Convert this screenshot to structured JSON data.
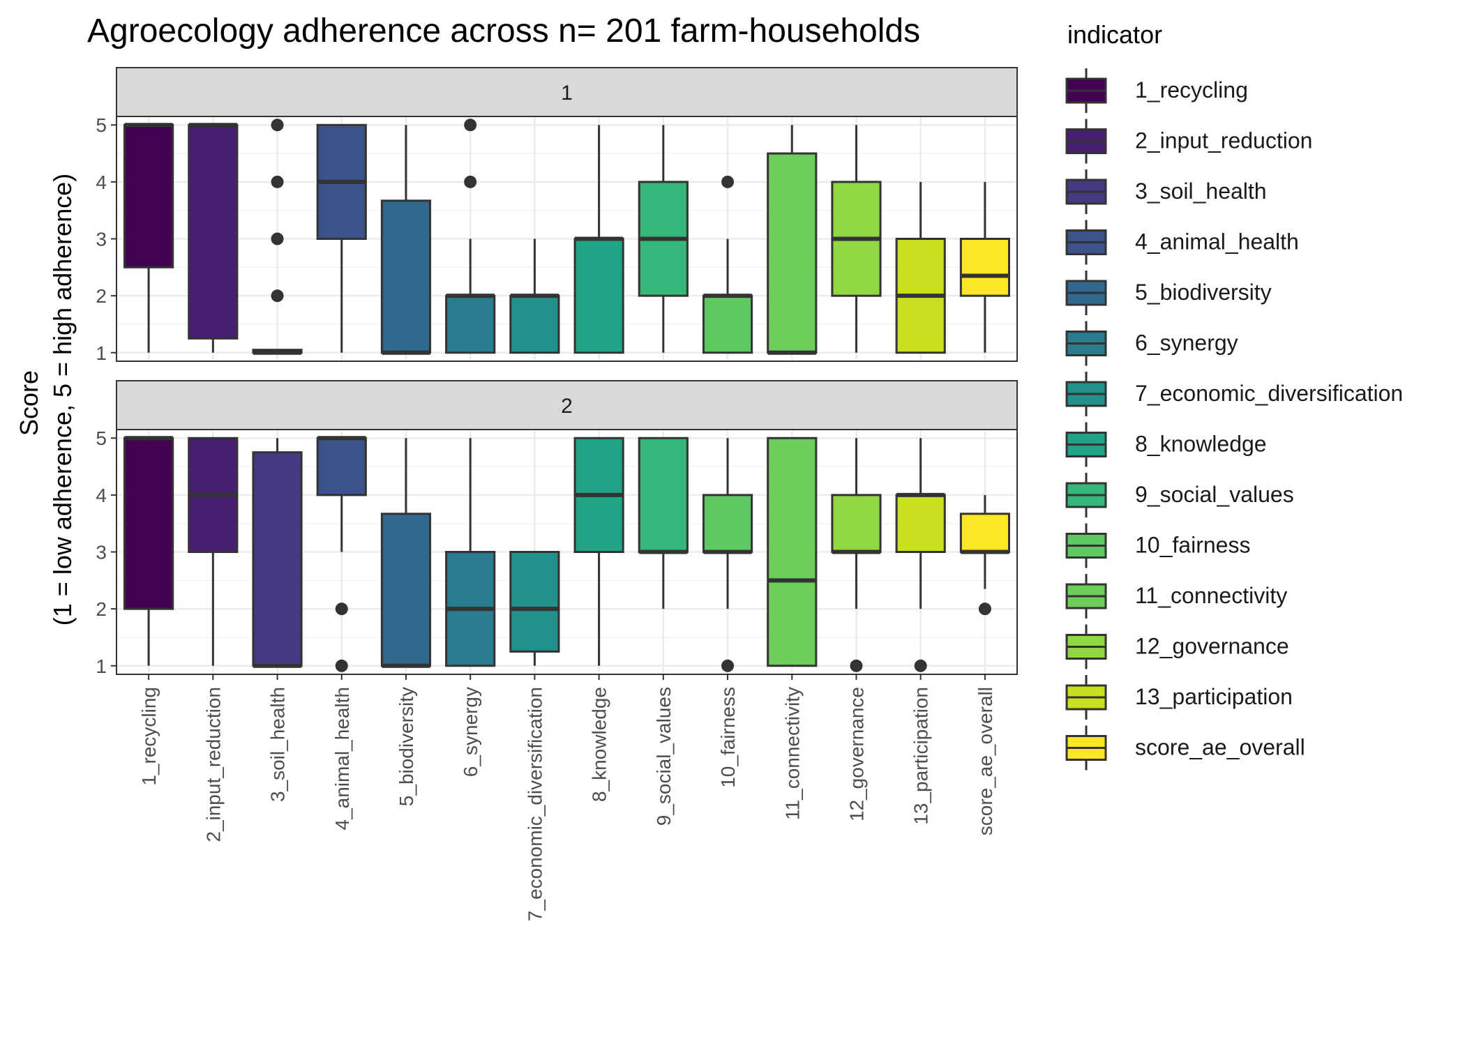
{
  "chart_data": {
    "type": "boxplot",
    "title": "Agroecology adherence across n= 201 farm-households",
    "ylabel_line1": "Score",
    "ylabel_line2": "(1 = low adherence, 5 = high adherence)",
    "xlabel": "",
    "ylim": [
      0.85,
      5.15
    ],
    "yticks": [
      1,
      2,
      3,
      4,
      5
    ],
    "legend": {
      "title": "indicator",
      "placement": "right"
    },
    "categories": [
      "1_recycling",
      "2_input_reduction",
      "3_soil_health",
      "4_animal_health",
      "5_biodiversity",
      "6_synergy",
      "7_economic_diversification",
      "8_knowledge",
      "9_social_values",
      "10_fairness",
      "11_connectivity",
      "12_governance",
      "13_participation",
      "score_ae_overall"
    ],
    "colors": [
      "#440154",
      "#481f70",
      "#443983",
      "#3b528b",
      "#31688e",
      "#287c8e",
      "#21918c",
      "#20a486",
      "#35b779",
      "#5ec962",
      "#6ccd5a",
      "#90d743",
      "#c8e020",
      "#fde725"
    ],
    "facets": [
      {
        "label": "1",
        "boxes": [
          {
            "low": 1,
            "q1": 2.5,
            "median": 5,
            "q3": 5,
            "high": 5,
            "outliers": []
          },
          {
            "low": 1,
            "q1": 1.25,
            "median": 5,
            "q3": 5,
            "high": 5,
            "outliers": []
          },
          {
            "low": 1,
            "q1": 1,
            "median": 1,
            "q3": 1.05,
            "high": 1.05,
            "outliers": [
              2,
              3,
              4,
              5
            ]
          },
          {
            "low": 1,
            "q1": 3,
            "median": 4,
            "q3": 5,
            "high": 5,
            "outliers": []
          },
          {
            "low": 1,
            "q1": 1,
            "median": 1,
            "q3": 3.67,
            "high": 5,
            "outliers": []
          },
          {
            "low": 1,
            "q1": 1,
            "median": 2,
            "q3": 2,
            "high": 3,
            "outliers": [
              4,
              5
            ]
          },
          {
            "low": 1,
            "q1": 1,
            "median": 2,
            "q3": 2,
            "high": 3,
            "outliers": []
          },
          {
            "low": 1,
            "q1": 1,
            "median": 3,
            "q3": 3,
            "high": 5,
            "outliers": []
          },
          {
            "low": 1,
            "q1": 2,
            "median": 3,
            "q3": 4,
            "high": 5,
            "outliers": []
          },
          {
            "low": 1,
            "q1": 1,
            "median": 2,
            "q3": 2,
            "high": 3,
            "outliers": [
              4
            ]
          },
          {
            "low": 1,
            "q1": 1,
            "median": 1,
            "q3": 4.5,
            "high": 5,
            "outliers": []
          },
          {
            "low": 1,
            "q1": 2,
            "median": 3,
            "q3": 4,
            "high": 5,
            "outliers": []
          },
          {
            "low": 1,
            "q1": 1,
            "median": 2,
            "q3": 3,
            "high": 4,
            "outliers": []
          },
          {
            "low": 1,
            "q1": 2,
            "median": 2.35,
            "q3": 3,
            "high": 4,
            "outliers": []
          }
        ]
      },
      {
        "label": "2",
        "boxes": [
          {
            "low": 1,
            "q1": 2,
            "median": 5,
            "q3": 5,
            "high": 5,
            "outliers": []
          },
          {
            "low": 1,
            "q1": 3,
            "median": 4,
            "q3": 5,
            "high": 5,
            "outliers": []
          },
          {
            "low": 1,
            "q1": 1,
            "median": 1,
            "q3": 4.75,
            "high": 5,
            "outliers": []
          },
          {
            "low": 3,
            "q1": 4,
            "median": 5,
            "q3": 5,
            "high": 5,
            "outliers": [
              1,
              2
            ]
          },
          {
            "low": 1,
            "q1": 1,
            "median": 1,
            "q3": 3.67,
            "high": 5,
            "outliers": []
          },
          {
            "low": 1,
            "q1": 1,
            "median": 2,
            "q3": 3,
            "high": 5,
            "outliers": []
          },
          {
            "low": 1,
            "q1": 1.25,
            "median": 2,
            "q3": 3,
            "high": 3,
            "outliers": []
          },
          {
            "low": 1,
            "q1": 3,
            "median": 4,
            "q3": 5,
            "high": 5,
            "outliers": []
          },
          {
            "low": 2,
            "q1": 3,
            "median": 3,
            "q3": 5,
            "high": 5,
            "outliers": []
          },
          {
            "low": 2,
            "q1": 3,
            "median": 3,
            "q3": 4,
            "high": 5,
            "outliers": [
              1
            ]
          },
          {
            "low": 1,
            "q1": 1,
            "median": 2.5,
            "q3": 5,
            "high": 5,
            "outliers": []
          },
          {
            "low": 2,
            "q1": 3,
            "median": 3,
            "q3": 4,
            "high": 5,
            "outliers": [
              1
            ]
          },
          {
            "low": 2,
            "q1": 3,
            "median": 4,
            "q3": 4,
            "high": 5,
            "outliers": [
              1
            ]
          },
          {
            "low": 2.35,
            "q1": 3,
            "median": 3,
            "q3": 3.67,
            "high": 4,
            "outliers": [
              2
            ]
          }
        ]
      }
    ]
  }
}
